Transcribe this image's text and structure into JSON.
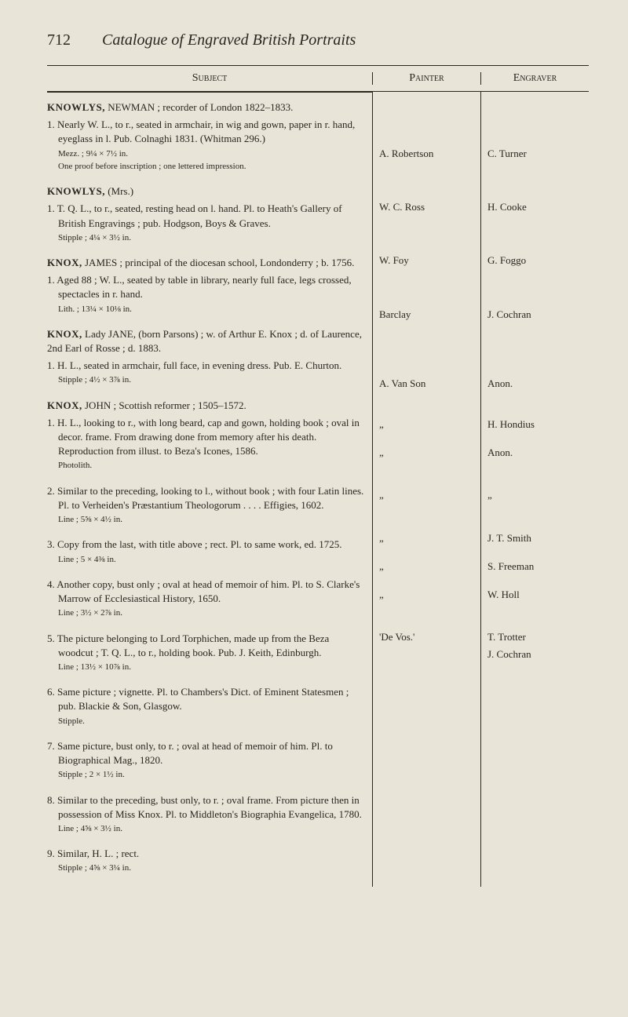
{
  "page_number": "712",
  "page_title": "Catalogue of Engraved British Portraits",
  "headers": {
    "subject": "Subject",
    "painter": "Painter",
    "engraver": "Engraver"
  },
  "entries": [
    {
      "heading": "KNOWLYS, NEWMAN ; recorder of London 1822–1833.",
      "items": [
        {
          "text": "1. Nearly W. L., to r., seated in armchair, in wig and gown, paper in r. hand, eyeglass in l. Pub. Colnaghi 1831. (Whitman 296.)",
          "note": "Mezz. ; 9¼ × 7½ in.\nOne proof before inscription ; one lettered impression."
        }
      ],
      "painter": "A. Robertson",
      "engraver": "C. Turner",
      "spacer_before": 60,
      "spacer_after": 0
    },
    {
      "heading": "KNOWLYS, (Mrs.)",
      "items": [
        {
          "text": "1. T. Q. L., to r., seated, resting head on l. hand. Pl. to Heath's Gallery of British Engravings ; pub. Hodgson, Boys & Graves.",
          "note": "Stipple ; 4¼ × 3½ in."
        }
      ],
      "painter": "W. C. Ross",
      "engraver": "H. Cooke",
      "spacer_before": 50,
      "spacer_after": 0
    },
    {
      "heading": "KNOX, JAMES ; principal of the diocesan school, Londonderry ; b. 1756.",
      "items": [
        {
          "text": "1. Aged 88 ; W. L., seated by table in library, nearly full face, legs crossed, spectacles in r. hand.",
          "note": "Lith. ; 13¼ × 10⅛ in."
        }
      ],
      "painter": "W. Foy",
      "engraver": "G. Foggo",
      "spacer_before": 50,
      "spacer_after": 0
    },
    {
      "heading": "KNOX, Lady JANE, (born Parsons) ; w. of Arthur E. Knox ; d. of Laurence, 2nd Earl of Rosse ; d. 1883.",
      "items": [
        {
          "text": "1. H. L., seated in armchair, full face, in evening dress. Pub. E. Churton.",
          "note": "Stipple ; 4½ × 3⅞ in."
        }
      ],
      "painter": "Barclay",
      "engraver": "J. Cochran",
      "spacer_before": 50,
      "spacer_after": 0
    },
    {
      "heading": "KNOX, JOHN ; Scottish reformer ; 1505–1572.",
      "items": [
        {
          "text": "1. H. L., looking to r., with long beard, cap and gown, holding book ; oval in decor. frame. From drawing done from memory after his death. Reproduction from illust. to Beza's Icones, 1586.",
          "note": "Photolith."
        }
      ],
      "painter": "A. Van Son",
      "engraver": "Anon.",
      "spacer_before": 70,
      "spacer_after": 0
    },
    {
      "heading": "",
      "items": [
        {
          "text": "2. Similar to the preceding, looking to l., without book ; with four Latin lines. Pl. to Verheiden's Præstantium Theologorum . . . . Effigies, 1602.",
          "note": "Line ; 5⅝ × 4½ in."
        }
      ],
      "painter": "„",
      "engraver": "H. Hondius",
      "spacer_before": 34,
      "spacer_after": 0
    },
    {
      "heading": "",
      "items": [
        {
          "text": "3. Copy from the last, with title above ; rect. Pl. to same work, ed. 1725.",
          "note": "Line ; 5 × 4⅜ in."
        }
      ],
      "painter": "„",
      "engraver": "Anon.",
      "spacer_before": 18,
      "spacer_after": 0
    },
    {
      "heading": "",
      "items": [
        {
          "text": "4. Another copy, bust only ; oval at head of memoir of him. Pl. to S. Clarke's Marrow of Ecclesiastical History, 1650.",
          "note": "Line ; 3½ × 2⅞ in."
        }
      ],
      "painter": "„",
      "engraver": "„",
      "spacer_before": 36,
      "spacer_after": 0
    },
    {
      "heading": "",
      "items": [
        {
          "text": "5. The picture belonging to Lord Torphichen, made up from the Beza woodcut ; T. Q. L., to r., holding book. Pub. J. Keith, Edinburgh.",
          "note": "Line ; 13½ × 10⅞ in."
        }
      ],
      "painter": "„",
      "engraver": "J. T. Smith",
      "spacer_before": 36,
      "spacer_after": 0
    },
    {
      "heading": "",
      "items": [
        {
          "text": "6. Same picture ; vignette. Pl. to Chambers's Dict. of Eminent Statesmen ; pub. Blackie & Son, Glasgow.",
          "note": "Stipple."
        }
      ],
      "painter": "„",
      "engraver": "S. Freeman",
      "spacer_before": 18,
      "spacer_after": 0
    },
    {
      "heading": "",
      "items": [
        {
          "text": "7. Same picture, bust only, to r. ; oval at head of memoir of him. Pl. to Biographical Mag., 1820.",
          "note": "Stipple ; 2 × 1½ in."
        }
      ],
      "painter": "„",
      "engraver": "W. Holl",
      "spacer_before": 18,
      "spacer_after": 0
    },
    {
      "heading": "",
      "items": [
        {
          "text": "8. Similar to the preceding, bust only, to r. ; oval frame. From picture then in possession of Miss Knox. Pl. to Middleton's Biographia Evangelica, 1780.",
          "note": "Line ; 4⅝ × 3½ in."
        }
      ],
      "painter": "'De Vos.'",
      "engraver": "T. Trotter",
      "spacer_before": 36,
      "spacer_after": 0
    },
    {
      "heading": "",
      "items": [
        {
          "text": "9. Similar, H. L. ; rect.",
          "note": "Stipple ; 4⅝ × 3¼ in."
        }
      ],
      "painter": "",
      "engraver": "J. Cochran",
      "spacer_before": 4,
      "spacer_after": 0
    }
  ]
}
